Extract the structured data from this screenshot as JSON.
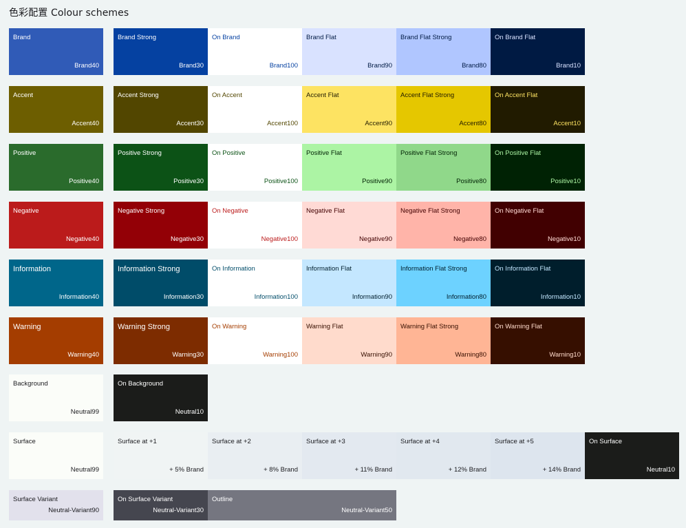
{
  "title": "色彩配置 Colour schemes",
  "rows": [
    {
      "key": "brand",
      "tiles": [
        {
          "name": "Brand",
          "token": "Brand40",
          "bg": "#305bb7",
          "fg": "#ffffff"
        },
        {
          "name": "Brand Strong",
          "token": "Brand30",
          "bg": "#0541a1",
          "fg": "#ffffff"
        },
        {
          "name": "On Brand",
          "token": "Brand100",
          "bg": "#ffffff",
          "fg": "#0541a1"
        },
        {
          "name": "Brand Flat",
          "token": "Brand90",
          "bg": "#d9e2ff",
          "fg": "#001a43"
        },
        {
          "name": "Brand Flat Strong",
          "token": "Brand80",
          "bg": "#b0c6ff",
          "fg": "#001a43"
        },
        {
          "name": "On Brand Flat",
          "token": "Brand10",
          "bg": "#001a43",
          "fg": "#d9e2ff"
        }
      ]
    },
    {
      "key": "accent",
      "tiles": [
        {
          "name": "Accent",
          "token": "Accent40",
          "bg": "#6d5e00",
          "fg": "#ffffff"
        },
        {
          "name": "Accent Strong",
          "token": "Accent30",
          "bg": "#524600",
          "fg": "#ffffff"
        },
        {
          "name": "On Accent",
          "token": "Accent100",
          "bg": "#ffffff",
          "fg": "#524600"
        },
        {
          "name": "Accent Flat",
          "token": "Accent90",
          "bg": "#fde362",
          "fg": "#211b00"
        },
        {
          "name": "Accent Flat Strong",
          "token": "Accent80",
          "bg": "#e5c700",
          "fg": "#211b00"
        },
        {
          "name": "On Accent Flat",
          "token": "Accent10",
          "bg": "#211b00",
          "fg": "#fde362"
        }
      ]
    },
    {
      "key": "positive",
      "tiles": [
        {
          "name": "Positive",
          "token": "Positive40",
          "bg": "#2a6b2c",
          "fg": "#ffffff"
        },
        {
          "name": "Positive Strong",
          "token": "Positive30",
          "bg": "#0c5216",
          "fg": "#ffffff"
        },
        {
          "name": "On Positive",
          "token": "Positive100",
          "bg": "#ffffff",
          "fg": "#0c5216"
        },
        {
          "name": "Positive Flat",
          "token": "Positive90",
          "bg": "#acf4a4",
          "fg": "#002204"
        },
        {
          "name": "Positive Flat Strong",
          "token": "Positive80",
          "bg": "#90d88a",
          "fg": "#002204"
        },
        {
          "name": "On Positive Flat",
          "token": "Positive10",
          "bg": "#002204",
          "fg": "#acf4a4"
        }
      ]
    },
    {
      "key": "negative",
      "tiles": [
        {
          "name": "Negative",
          "token": "Negative40",
          "bg": "#bb1b1b",
          "fg": "#ffffff"
        },
        {
          "name": "Negative Strong",
          "token": "Negative30",
          "bg": "#930006",
          "fg": "#ffffff"
        },
        {
          "name": "On Negative",
          "token": "Negative100",
          "bg": "#ffffff",
          "fg": "#bb1b1b"
        },
        {
          "name": "Negative Flat",
          "token": "Negative90",
          "bg": "#ffdad5",
          "fg": "#410001"
        },
        {
          "name": "Negative Flat Strong",
          "token": "Negative80",
          "bg": "#ffb4a9",
          "fg": "#410001"
        },
        {
          "name": "On Negative Flat",
          "token": "Negative10",
          "bg": "#410001",
          "fg": "#ffdad5"
        }
      ]
    },
    {
      "key": "information",
      "tiles": [
        {
          "name": "Information",
          "token": "Information40",
          "bg": "#00668a",
          "fg": "#ffffff",
          "big": true
        },
        {
          "name": "Information Strong",
          "token": "Information30",
          "bg": "#004c69",
          "fg": "#ffffff",
          "big": true
        },
        {
          "name": "On Information",
          "token": "Information100",
          "bg": "#ffffff",
          "fg": "#004c69"
        },
        {
          "name": "Information Flat",
          "token": "Information90",
          "bg": "#c4e7ff",
          "fg": "#001e2c"
        },
        {
          "name": "Information Flat Strong",
          "token": "Information80",
          "bg": "#6dd2ff",
          "fg": "#001e2c"
        },
        {
          "name": "On Information Flat",
          "token": "Information10",
          "bg": "#001e2c",
          "fg": "#c4e7ff"
        }
      ]
    },
    {
      "key": "warning",
      "tiles": [
        {
          "name": "Warning",
          "token": "Warning40",
          "bg": "#a43d00",
          "fg": "#ffffff",
          "big": true
        },
        {
          "name": "Warning Strong",
          "token": "Warning30",
          "bg": "#7d2c00",
          "fg": "#ffffff",
          "big": true
        },
        {
          "name": "On Warning",
          "token": "Warning100",
          "bg": "#ffffff",
          "fg": "#a43d00"
        },
        {
          "name": "Warning Flat",
          "token": "Warning90",
          "bg": "#ffdbcc",
          "fg": "#360f00"
        },
        {
          "name": "Warning Flat Strong",
          "token": "Warning80",
          "bg": "#ffb595",
          "fg": "#360f00"
        },
        {
          "name": "On Warning Flat",
          "token": "Warning10",
          "bg": "#360f00",
          "fg": "#ffdbcc"
        }
      ]
    },
    {
      "key": "background",
      "tiles": [
        {
          "name": "Background",
          "token": "Neutral99",
          "bg": "#fbfdf9",
          "fg": "#1b1b1f"
        },
        {
          "name": "On Background",
          "token": "Neutral10",
          "bg": "#1b1c1a",
          "fg": "#ffffff"
        }
      ]
    },
    {
      "key": "surface",
      "tiles": [
        {
          "name": "Surface",
          "token": "Neutral99",
          "bg": "#fbfdf9",
          "fg": "#1b1b1f"
        },
        {
          "name": "Surface at +1",
          "token": "+ 5% Brand",
          "bg": "#f0f4f4",
          "fg": "#1b1b1f"
        },
        {
          "name": "Surface at +2",
          "token": "+ 8% Brand",
          "bg": "#e9eef2",
          "fg": "#1b1b1f"
        },
        {
          "name": "Surface at +3",
          "token": "+ 11% Brand",
          "bg": "#e3e9f0",
          "fg": "#1b1b1f"
        },
        {
          "name": "Surface at +4",
          "token": "+ 12% Brand",
          "bg": "#e1e8ef",
          "fg": "#1b1b1f"
        },
        {
          "name": "Surface at +5",
          "token": "+ 14% Brand",
          "bg": "#dde5ee",
          "fg": "#1b1b1f"
        },
        {
          "name": "On Surface",
          "token": "Neutral10",
          "bg": "#1b1c1a",
          "fg": "#ffffff"
        }
      ]
    },
    {
      "key": "variant",
      "tiles": [
        {
          "name": "Surface Variant",
          "token": "Neutral-Variant90",
          "bg": "#e2e1ec",
          "fg": "#1b1b1f"
        },
        {
          "name": "On Surface Variant",
          "token": "Neutral-Variant30",
          "bg": "#45464f",
          "fg": "#ffffff"
        },
        {
          "name": "Outline",
          "token": "Neutral-Variant50",
          "bg": "#757680",
          "fg": "#ffffff"
        }
      ]
    }
  ]
}
